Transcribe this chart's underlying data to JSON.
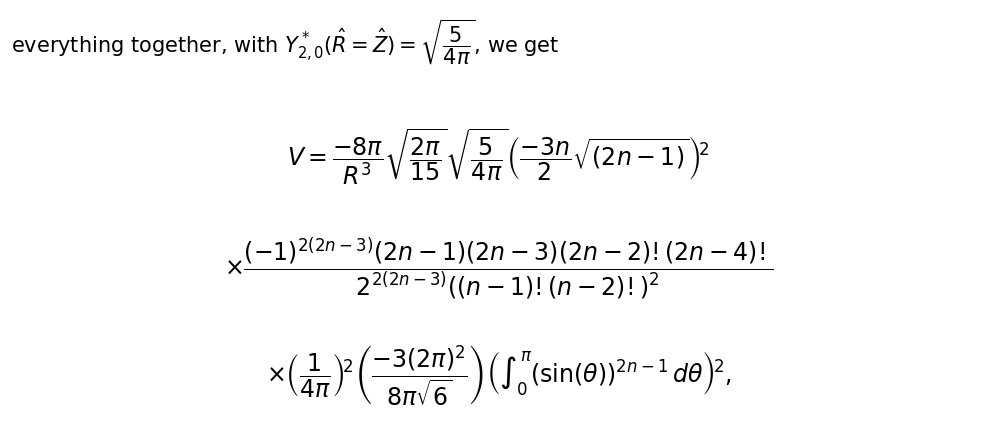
{
  "title_text": "everything together, with $Y^*_{2,0}(\\hat{R} = \\hat{Z}) = \\sqrt{\\dfrac{5}{4\\pi}}$, we get",
  "formula_line1": "$V = \\dfrac{-8\\pi}{R^3}\\sqrt{\\dfrac{2\\pi}{15}}\\sqrt{\\dfrac{5}{4\\pi}}\\left(\\dfrac{-3n}{2}\\sqrt{(2n-1)}\\right)^2$",
  "formula_line2": "$\\times\\dfrac{(-1)^{2(2n-3)}(2n-1)(2n-3)(2n-2)!(2n-4)!}{2^{2(2n-3)}\\,\\left((n-1)!(n-2)!\\right)^2}$",
  "formula_line3": "$\\times\\left(\\dfrac{1}{4\\pi}\\right)^2\\left(\\dfrac{-3(2\\pi)^2}{8\\pi\\sqrt{6}}\\right)\\left(\\displaystyle\\int_0^{\\pi}(\\sin(\\theta))^{2n-1}\\,d\\theta\\right)^2,$",
  "bg_color": "#ffffff",
  "text_color": "#000000",
  "fontsize_title": 15,
  "fontsize_formula": 17
}
